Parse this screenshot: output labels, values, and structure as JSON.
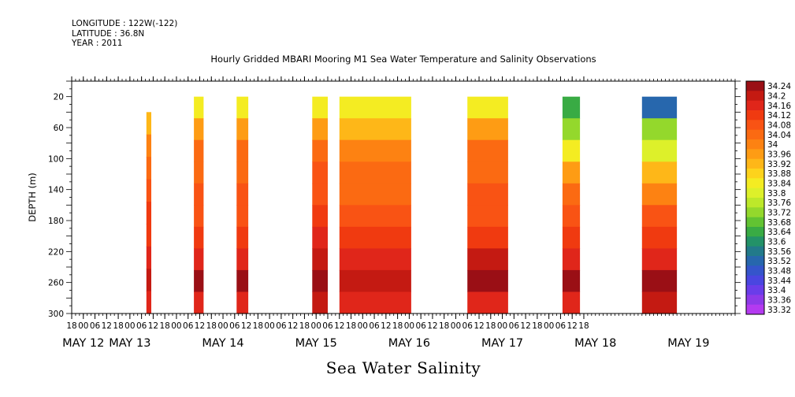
{
  "meta": {
    "longitude": "LONGITUDE : 122W(-122)",
    "latitude": "LATITUDE : 36.8N",
    "year": "YEAR : 2011"
  },
  "chart_data": {
    "type": "heatmap",
    "title": "Hourly Gridded MBARI Mooring M1 Sea Water Temperature and Salinity Observations",
    "xlabel": "Sea Water Salinity",
    "ylabel": "DEPTH (m)",
    "x_hour_ticks": [
      "18",
      "00",
      "06",
      "12",
      "18",
      "00",
      "06",
      "12",
      "18",
      "00",
      "06",
      "12",
      "18",
      "00",
      "06",
      "12",
      "18",
      "00",
      "06",
      "12",
      "18",
      "00",
      "06",
      "12",
      "18",
      "00",
      "06",
      "12",
      "18",
      "00",
      "06",
      "12",
      "18",
      "00",
      "06",
      "12",
      "18",
      "00",
      "06",
      "12",
      "18",
      "00",
      "06",
      "12",
      "18"
    ],
    "x_day_labels": [
      {
        "label": "MAY 12",
        "hours": 6
      },
      {
        "label": "MAY 13",
        "hours": 30
      },
      {
        "label": "MAY 14",
        "hours": 78
      },
      {
        "label": "MAY 15",
        "hours": 126
      },
      {
        "label": "MAY 16",
        "hours": 174
      },
      {
        "label": "MAY 17",
        "hours": 222
      },
      {
        "label": "MAY 18",
        "hours": 270
      },
      {
        "label": "MAY 19",
        "hours": 318
      }
    ],
    "x_range_hours_from_may11_18h": [
      0,
      342
    ],
    "ylim": [
      300,
      0
    ],
    "y_ticks": [
      20,
      60,
      100,
      140,
      180,
      220,
      260,
      300
    ],
    "colorbar_levels": [
      34.24,
      34.2,
      34.16,
      34.12,
      34.08,
      34.04,
      34,
      33.96,
      33.92,
      33.88,
      33.84,
      33.8,
      33.76,
      33.72,
      33.68,
      33.64,
      33.6,
      33.56,
      33.52,
      33.48,
      33.44,
      33.4,
      33.36,
      33.32
    ],
    "colorbar_colors": [
      "#9a0f15",
      "#c41a12",
      "#e0261a",
      "#f03a10",
      "#f95314",
      "#fb6a12",
      "#fd8212",
      "#fe9c14",
      "#feb718",
      "#fdd31c",
      "#f4ec22",
      "#ddf02a",
      "#bde82a",
      "#94d82c",
      "#62c332",
      "#39ab44",
      "#239268",
      "#227a8a",
      "#2767ad",
      "#3555cb",
      "#4a46e0",
      "#6a3de9",
      "#8e3ae8",
      "#b43af0"
    ],
    "data_blocks": [
      {
        "start_hour": 38.5,
        "end_hour": 41,
        "top_depth": 40,
        "values": [
          33.9,
          34.0,
          34.04,
          34.08,
          34.1,
          34.12,
          34.16,
          34.2,
          34.16
        ]
      },
      {
        "start_hour": 63,
        "end_hour": 68,
        "top_depth": 20,
        "values": [
          33.84,
          33.96,
          34.02,
          34.04,
          34.06,
          34.08,
          34.1,
          34.16,
          34.22,
          34.16
        ]
      },
      {
        "start_hour": 85,
        "end_hour": 91,
        "top_depth": 20,
        "values": [
          33.82,
          33.96,
          34.02,
          34.04,
          34.06,
          34.08,
          34.1,
          34.16,
          34.22,
          34.16
        ]
      },
      {
        "start_hour": 124,
        "end_hour": 132,
        "top_depth": 20,
        "values": [
          33.82,
          33.96,
          34.02,
          34.06,
          34.08,
          34.1,
          34.14,
          34.2,
          34.24,
          34.18
        ]
      },
      {
        "start_hour": 138,
        "end_hour": 175,
        "top_depth": 20,
        "values": [
          33.82,
          33.92,
          33.98,
          34.02,
          34.04,
          34.06,
          34.1,
          34.16,
          34.2,
          34.14
        ]
      },
      {
        "start_hour": 204,
        "end_hour": 225,
        "top_depth": 20,
        "values": [
          33.84,
          33.96,
          34.02,
          34.04,
          34.06,
          34.08,
          34.12,
          34.18,
          34.22,
          34.16
        ]
      },
      {
        "start_hour": 253,
        "end_hour": 262,
        "top_depth": 20,
        "values": [
          33.62,
          33.72,
          33.84,
          33.94,
          34.02,
          34.06,
          34.1,
          34.16,
          34.22,
          34.16
        ]
      },
      {
        "start_hour": 294,
        "end_hour": 312,
        "top_depth": 20,
        "values": [
          33.5,
          33.7,
          33.8,
          33.92,
          34.0,
          34.06,
          34.1,
          34.16,
          34.22,
          34.18
        ]
      }
    ]
  }
}
